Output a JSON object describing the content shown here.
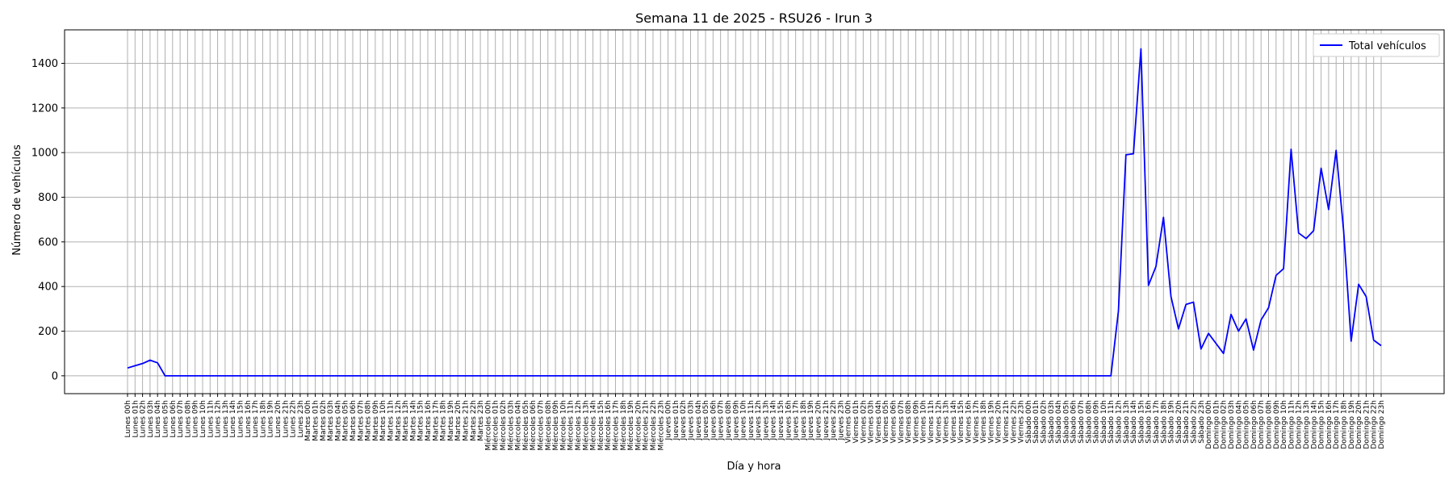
{
  "chart_data": {
    "type": "line",
    "title": "Semana 11 de 2025 - RSU26 - Irun 3",
    "xlabel": "Día y hora",
    "ylabel": "Número de vehículos",
    "ylim": [
      -80,
      1550
    ],
    "yticks": [
      0,
      200,
      400,
      600,
      800,
      1000,
      1200,
      1400
    ],
    "grid": true,
    "legend_position": "top-right",
    "days": [
      "Lunes",
      "Martes",
      "Miércoles",
      "Jueves",
      "Viernes",
      "Sábado",
      "Domingo"
    ],
    "hours_per_day": 24,
    "series": [
      {
        "name": "Total vehículos",
        "color": "#0000ff",
        "values": [
          35,
          45,
          55,
          70,
          58,
          0,
          0,
          0,
          0,
          0,
          0,
          0,
          0,
          0,
          0,
          0,
          0,
          0,
          0,
          0,
          0,
          0,
          0,
          0,
          0,
          0,
          0,
          0,
          0,
          0,
          0,
          0,
          0,
          0,
          0,
          0,
          0,
          0,
          0,
          0,
          0,
          0,
          0,
          0,
          0,
          0,
          0,
          0,
          0,
          0,
          0,
          0,
          0,
          0,
          0,
          0,
          0,
          0,
          0,
          0,
          0,
          0,
          0,
          0,
          0,
          0,
          0,
          0,
          0,
          0,
          0,
          0,
          0,
          0,
          0,
          0,
          0,
          0,
          0,
          0,
          0,
          0,
          0,
          0,
          0,
          0,
          0,
          0,
          0,
          0,
          0,
          0,
          0,
          0,
          0,
          0,
          0,
          0,
          0,
          0,
          0,
          0,
          0,
          0,
          0,
          0,
          0,
          0,
          0,
          0,
          0,
          0,
          0,
          0,
          0,
          0,
          0,
          0,
          0,
          0,
          0,
          0,
          0,
          0,
          0,
          0,
          0,
          0,
          0,
          0,
          0,
          0,
          290,
          990,
          995,
          1465,
          405,
          490,
          710,
          355,
          210,
          320,
          330,
          120,
          190,
          145,
          100,
          275,
          200,
          255,
          115,
          250,
          305,
          450,
          480,
          1015,
          640,
          615,
          650,
          930,
          745,
          1010,
          650,
          155,
          410,
          355,
          160,
          135
        ]
      }
    ]
  }
}
